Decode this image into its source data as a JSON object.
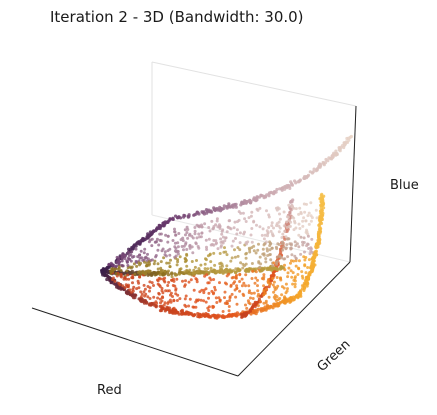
{
  "chart_data": {
    "type": "scatter",
    "projection": "3d",
    "title": "Iteration 2 - 3D (Bandwidth: 30.0)",
    "xlabel": "Red",
    "ylabel": "Green",
    "zlabel": "Blue",
    "tick_labels_shown": false,
    "grid": false,
    "legend": "none",
    "point_colors": [
      "#3b1f4a",
      "#6b3a6e",
      "#c9a7b0",
      "#e7d3c6",
      "#8a6d1e",
      "#b79b3e",
      "#c3401f",
      "#e2541e",
      "#f4a629",
      "#f6c04a"
    ],
    "point_count_approx": 2200
  }
}
